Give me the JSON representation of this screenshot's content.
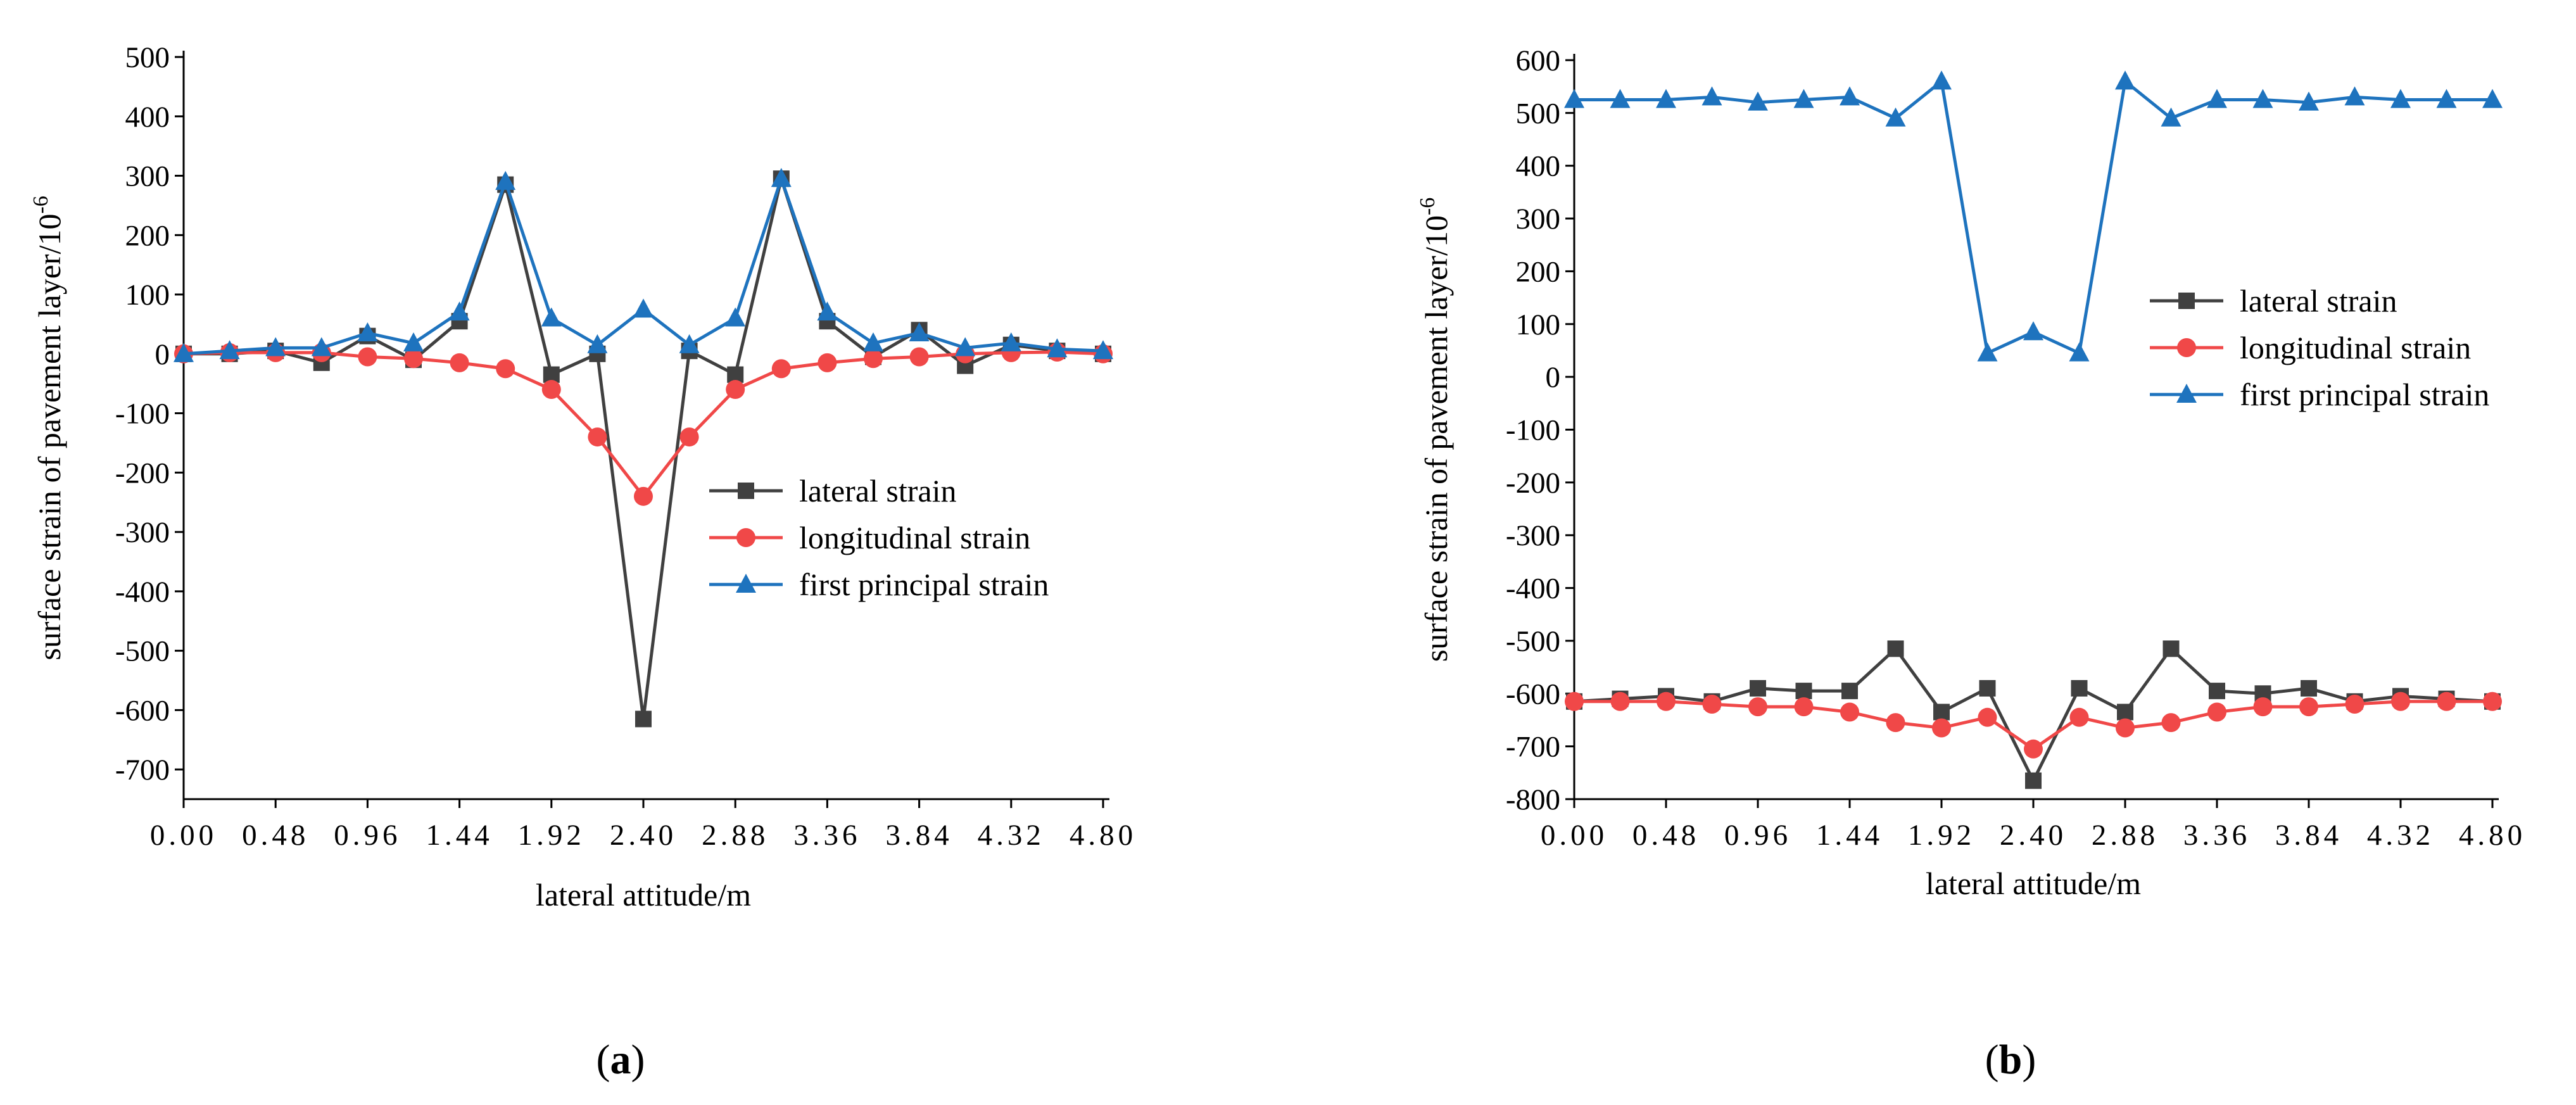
{
  "chart_data": [
    {
      "type": "line",
      "panel": "a",
      "caption_prefix": "(",
      "caption_letter": "a",
      "caption_suffix": ")",
      "xlabel": "lateral attitude/m",
      "ylabel": "surface strain of pavement layer/10",
      "ylabel_exponent": "-6",
      "xlim": [
        0,
        4.8
      ],
      "ylim": [
        -750,
        500
      ],
      "x_ticks": [
        "0.00",
        "0.48",
        "0.96",
        "1.44",
        "1.92",
        "2.40",
        "2.88",
        "3.36",
        "3.84",
        "4.32",
        "4.80"
      ],
      "y_ticks": [
        500,
        400,
        300,
        200,
        100,
        0,
        -100,
        -200,
        -300,
        -400,
        -500,
        -600,
        -700
      ],
      "legend_position": "center-right",
      "x": [
        0,
        0.24,
        0.48,
        0.72,
        0.96,
        1.2,
        1.44,
        1.68,
        1.92,
        2.16,
        2.4,
        2.64,
        2.88,
        3.12,
        3.36,
        3.6,
        3.84,
        4.08,
        4.32,
        4.56,
        4.8
      ],
      "series": [
        {
          "name": "lateral strain",
          "color": "#404040",
          "marker": "square",
          "values": [
            0,
            0,
            5,
            -15,
            30,
            -10,
            55,
            285,
            -35,
            0,
            -615,
            5,
            -35,
            295,
            55,
            -5,
            40,
            -20,
            15,
            5,
            0
          ]
        },
        {
          "name": "longitudinal strain",
          "color": "#f04848",
          "marker": "circle",
          "values": [
            0,
            2,
            2,
            2,
            -5,
            -8,
            -15,
            -25,
            -60,
            -140,
            -240,
            -140,
            -60,
            -25,
            -15,
            -8,
            -5,
            0,
            2,
            3,
            0
          ]
        },
        {
          "name": "first principal strain",
          "color": "#1e73be",
          "marker": "triangle",
          "values": [
            0,
            5,
            10,
            10,
            35,
            18,
            70,
            290,
            60,
            15,
            75,
            15,
            60,
            295,
            70,
            18,
            35,
            10,
            18,
            8,
            5
          ]
        }
      ]
    },
    {
      "type": "line",
      "panel": "b",
      "caption_prefix": "(",
      "caption_letter": "b",
      "caption_suffix": ")",
      "xlabel": "lateral attitude/m",
      "ylabel": "surface strain of pavement layer/10",
      "ylabel_exponent": "-6",
      "xlim": [
        0,
        4.8
      ],
      "ylim": [
        -800,
        600
      ],
      "x_ticks": [
        "0.00",
        "0.48",
        "0.96",
        "1.44",
        "1.92",
        "2.40",
        "2.88",
        "3.36",
        "3.84",
        "4.32",
        "4.80"
      ],
      "y_ticks": [
        600,
        500,
        400,
        300,
        200,
        100,
        0,
        -100,
        -200,
        -300,
        -400,
        -500,
        -600,
        -700,
        -800
      ],
      "legend_position": "center-right",
      "x": [
        0,
        0.24,
        0.48,
        0.72,
        0.96,
        1.2,
        1.44,
        1.68,
        1.92,
        2.16,
        2.4,
        2.64,
        2.88,
        3.12,
        3.36,
        3.6,
        3.84,
        4.08,
        4.32,
        4.56,
        4.8
      ],
      "series": [
        {
          "name": "lateral strain",
          "color": "#404040",
          "marker": "square",
          "values": [
            -615,
            -610,
            -605,
            -615,
            -590,
            -595,
            -595,
            -515,
            -635,
            -590,
            -765,
            -590,
            -635,
            -515,
            -595,
            -600,
            -590,
            -615,
            -605,
            -610,
            -615
          ]
        },
        {
          "name": "longitudinal strain",
          "color": "#f04848",
          "marker": "circle",
          "values": [
            -615,
            -615,
            -615,
            -620,
            -625,
            -625,
            -635,
            -655,
            -665,
            -645,
            -705,
            -645,
            -665,
            -655,
            -635,
            -625,
            -625,
            -620,
            -615,
            -615,
            -615
          ]
        },
        {
          "name": "first principal strain",
          "color": "#1e73be",
          "marker": "triangle",
          "values": [
            525,
            525,
            525,
            530,
            520,
            525,
            530,
            490,
            560,
            45,
            85,
            45,
            560,
            490,
            525,
            525,
            520,
            530,
            525,
            525,
            525
          ]
        }
      ]
    }
  ]
}
